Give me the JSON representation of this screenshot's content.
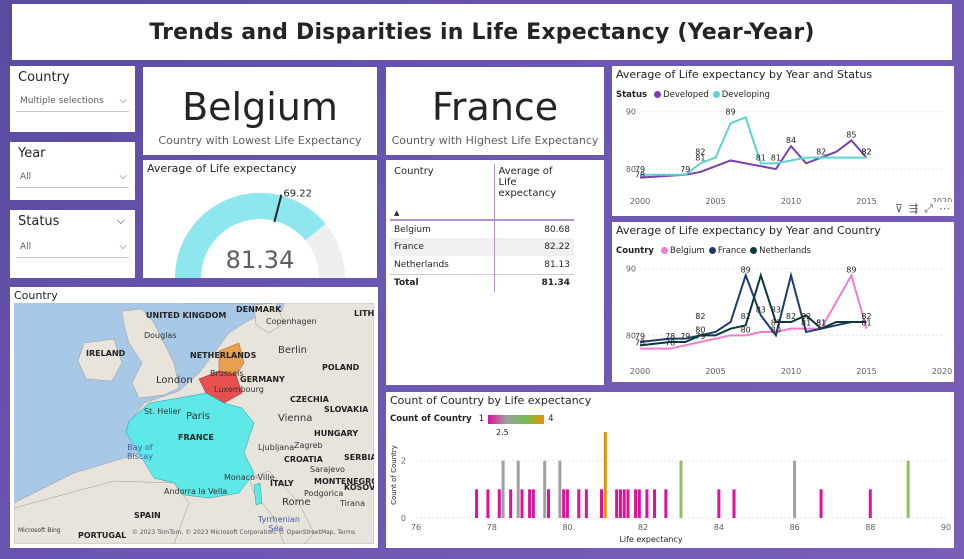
{
  "title": "Trends and Disparities in Life Expectancy (Year-Year)",
  "slicers": {
    "country": {
      "label": "Country",
      "value": "Multiple selections"
    },
    "year": {
      "label": "Year",
      "value": "All"
    },
    "status": {
      "label": "Status",
      "value": "All"
    }
  },
  "kpi_lowest": {
    "value": "Belgium",
    "caption": "Country with Lowest Life Expectancy"
  },
  "kpi_highest": {
    "value": "France",
    "caption": "Country with Highest Life Expectancy"
  },
  "gauge": {
    "title": "Average of Life expectancy",
    "value": "81.34",
    "target": "69.22",
    "fill_fraction": 0.78,
    "target_fraction": 0.58
  },
  "matrix": {
    "col1": "Country",
    "col2": "Average of Life expectancy",
    "rows": [
      {
        "name": "Belgium",
        "value": "80.68"
      },
      {
        "name": "France",
        "value": "82.22"
      },
      {
        "name": "Netherlands",
        "value": "81.13"
      }
    ],
    "total": {
      "name": "Total",
      "value": "81.34"
    }
  },
  "map": {
    "title": "Country",
    "labels": [
      "UNITED KINGDOM",
      "IRELAND",
      "DENMARK",
      "Copenhagen",
      "LITHU",
      "Douglas",
      "NETHERLANDS",
      "Berlin",
      "POLAND",
      "London",
      "Brussels",
      "GERMANY",
      "Luxembourg",
      "St. Helier",
      "Paris",
      "CZECHIA",
      "SLOVAKIA",
      "FRANCE",
      "Vienna",
      "HUNGARY",
      "Bay of Biscay",
      "Ljubljana",
      "CROATIA",
      "Zagreb",
      "Sarajevo",
      "SERBIA",
      "Monaco-Ville",
      "MONTENEGRO",
      "Andorra la Vella",
      "ITALY",
      "Podgorica",
      "KOSOVO",
      "Rome",
      "Tirana",
      "SPAIN",
      "Tyrrhenian Sea",
      "PORTUGAL"
    ],
    "attribution": "© 2023 TomTom, © 2023 Microsoft Corporation, © OpenStreetMap, Terms",
    "bing": "Microsoft Bing"
  },
  "colors": {
    "developed": "#7b3fb0",
    "developing": "#5ed4cf",
    "belgium": "#f07ed0",
    "france": "#1f3b70",
    "netherlands": "#0a3a3a",
    "gauge_fill": "#8ee6ee",
    "gauge_bg": "#eeeeee",
    "france_map": "#5ee8e8",
    "belgium_map": "#e85050",
    "netherlands_map": "#e8a050"
  },
  "chart_data": [
    {
      "type": "line",
      "title": "Average of Life expectancy by Year and Status",
      "legend_title": "Status",
      "x_ticks": [
        "2000",
        "2005",
        "2010",
        "2015",
        "2020"
      ],
      "xlim": [
        2000,
        2020
      ],
      "y_ticks": [
        "80",
        "90"
      ],
      "ylim": [
        76,
        91
      ],
      "series": [
        {
          "name": "Developed",
          "x": [
            2000,
            2003,
            2004,
            2005,
            2006,
            2007,
            2008,
            2009,
            2010,
            2011,
            2012,
            2013,
            2014,
            2015
          ],
          "y": [
            78.5,
            79,
            79.5,
            80.5,
            81.5,
            81,
            80.5,
            80,
            84,
            81,
            82,
            83,
            85,
            82
          ]
        },
        {
          "name": "Developing",
          "x": [
            2000,
            2003,
            2004,
            2005,
            2006,
            2007,
            2008,
            2009,
            2010,
            2011,
            2012,
            2013,
            2014,
            2015
          ],
          "y": [
            79,
            79,
            81,
            82,
            88,
            89,
            81,
            81,
            81.5,
            82,
            82,
            82,
            82,
            82
          ]
        }
      ],
      "data_labels": [
        {
          "x": 2000,
          "y": 79,
          "text": "79"
        },
        {
          "x": 2000,
          "y": 78,
          "text": "78"
        },
        {
          "x": 2003,
          "y": 79,
          "text": "79"
        },
        {
          "x": 2004,
          "y": 82,
          "text": "82"
        },
        {
          "x": 2004,
          "y": 81,
          "text": "81"
        },
        {
          "x": 2006,
          "y": 89,
          "text": "89"
        },
        {
          "x": 2008,
          "y": 81,
          "text": "81"
        },
        {
          "x": 2009,
          "y": 81,
          "text": "81"
        },
        {
          "x": 2010,
          "y": 84,
          "text": "84"
        },
        {
          "x": 2012,
          "y": 82,
          "text": "82"
        },
        {
          "x": 2014,
          "y": 85,
          "text": "85"
        },
        {
          "x": 2015,
          "y": 82,
          "text": "82"
        },
        {
          "x": 2015,
          "y": 82,
          "text": "82"
        }
      ]
    },
    {
      "type": "line",
      "title": "Average of Life expectancy by Year and Country",
      "legend_title": "Country",
      "x_ticks": [
        "2000",
        "2005",
        "2010",
        "2015",
        "2020"
      ],
      "xlim": [
        2000,
        2020
      ],
      "y_ticks": [
        "80",
        "90"
      ],
      "ylim": [
        76,
        91
      ],
      "series": [
        {
          "name": "Belgium",
          "x": [
            2000,
            2002,
            2003,
            2004,
            2005,
            2006,
            2007,
            2008,
            2009,
            2010,
            2011,
            2012,
            2013,
            2014,
            2015
          ],
          "y": [
            78,
            78,
            78.5,
            79,
            79.5,
            80,
            80,
            80.5,
            80.5,
            81,
            81,
            81,
            85,
            89,
            81
          ]
        },
        {
          "name": "France",
          "x": [
            2000,
            2002,
            2003,
            2004,
            2005,
            2006,
            2007,
            2008,
            2009,
            2010,
            2011,
            2012,
            2013,
            2014,
            2015
          ],
          "y": [
            79,
            79.5,
            79.5,
            80,
            80.5,
            82,
            89,
            83,
            80,
            89,
            80.5,
            81,
            81.5,
            82,
            82
          ]
        },
        {
          "name": "Netherlands",
          "x": [
            2000,
            2002,
            2003,
            2004,
            2005,
            2006,
            2007,
            2008,
            2009,
            2010,
            2011,
            2012,
            2013,
            2014,
            2015
          ],
          "y": [
            78.5,
            79,
            79,
            80,
            80,
            81,
            81.5,
            89,
            82,
            82,
            83,
            81,
            82,
            82,
            82
          ]
        }
      ],
      "data_labels": [
        {
          "x": 2000,
          "y": 79,
          "text": "79"
        },
        {
          "x": 2000,
          "y": 78,
          "text": "78"
        },
        {
          "x": 2002,
          "y": 78,
          "text": "78"
        },
        {
          "x": 2002,
          "y": 79,
          "text": "78"
        },
        {
          "x": 2003,
          "y": 79,
          "text": "79"
        },
        {
          "x": 2004,
          "y": 82,
          "text": "82"
        },
        {
          "x": 2004,
          "y": 79,
          "text": "79"
        },
        {
          "x": 2004,
          "y": 80,
          "text": "80"
        },
        {
          "x": 2007,
          "y": 89,
          "text": "89"
        },
        {
          "x": 2007,
          "y": 82,
          "text": "82"
        },
        {
          "x": 2007,
          "y": 80,
          "text": "80"
        },
        {
          "x": 2008,
          "y": 83,
          "text": "83"
        },
        {
          "x": 2009,
          "y": 83,
          "text": "83"
        },
        {
          "x": 2009,
          "y": 80,
          "text": "80"
        },
        {
          "x": 2009,
          "y": 81,
          "text": "81"
        },
        {
          "x": 2010,
          "y": 82,
          "text": "82"
        },
        {
          "x": 2012,
          "y": 81,
          "text": "81"
        },
        {
          "x": 2012,
          "y": 81,
          "text": "81"
        },
        {
          "x": 2011,
          "y": 82,
          "text": "82"
        },
        {
          "x": 2011,
          "y": 81,
          "text": "81"
        },
        {
          "x": 2014,
          "y": 89,
          "text": "89"
        },
        {
          "x": 2015,
          "y": 82,
          "text": "82"
        },
        {
          "x": 2015,
          "y": 81,
          "text": "81"
        }
      ]
    },
    {
      "type": "bar",
      "title": "Count of Country by Life expectancy",
      "legend_title": "Count of Country",
      "legend_min": "1",
      "legend_max": "4",
      "legend_mid": "2.5",
      "xlabel": "Life expectancy",
      "ylabel": "Count of Country",
      "x_ticks": [
        "76",
        "78",
        "80",
        "82",
        "84",
        "86",
        "88",
        "90"
      ],
      "xlim": [
        76,
        90
      ],
      "y_ticks": [
        "0",
        "2"
      ],
      "ylim": [
        0,
        3
      ],
      "bars": [
        {
          "x": 77.6,
          "count": 1
        },
        {
          "x": 77.9,
          "count": 1
        },
        {
          "x": 78.2,
          "count": 1
        },
        {
          "x": 78.3,
          "count": 2
        },
        {
          "x": 78.5,
          "count": 1
        },
        {
          "x": 78.7,
          "count": 2
        },
        {
          "x": 78.8,
          "count": 1
        },
        {
          "x": 79.0,
          "count": 1
        },
        {
          "x": 79.1,
          "count": 1
        },
        {
          "x": 79.4,
          "count": 2
        },
        {
          "x": 79.5,
          "count": 1
        },
        {
          "x": 79.8,
          "count": 2
        },
        {
          "x": 79.9,
          "count": 1
        },
        {
          "x": 80.0,
          "count": 1
        },
        {
          "x": 80.3,
          "count": 1
        },
        {
          "x": 80.5,
          "count": 1
        },
        {
          "x": 80.9,
          "count": 1
        },
        {
          "x": 81.0,
          "count": 3
        },
        {
          "x": 81.3,
          "count": 1
        },
        {
          "x": 81.4,
          "count": 1
        },
        {
          "x": 81.5,
          "count": 1
        },
        {
          "x": 81.6,
          "count": 1
        },
        {
          "x": 81.8,
          "count": 1
        },
        {
          "x": 81.9,
          "count": 1
        },
        {
          "x": 82.1,
          "count": 1
        },
        {
          "x": 82.3,
          "count": 1
        },
        {
          "x": 82.6,
          "count": 1
        },
        {
          "x": 83.0,
          "count": 2
        },
        {
          "x": 84.0,
          "count": 1
        },
        {
          "x": 84.4,
          "count": 1
        },
        {
          "x": 86.0,
          "count": 2
        },
        {
          "x": 86.7,
          "count": 1
        },
        {
          "x": 88.0,
          "count": 1
        },
        {
          "x": 89.0,
          "count": 2
        }
      ]
    }
  ]
}
